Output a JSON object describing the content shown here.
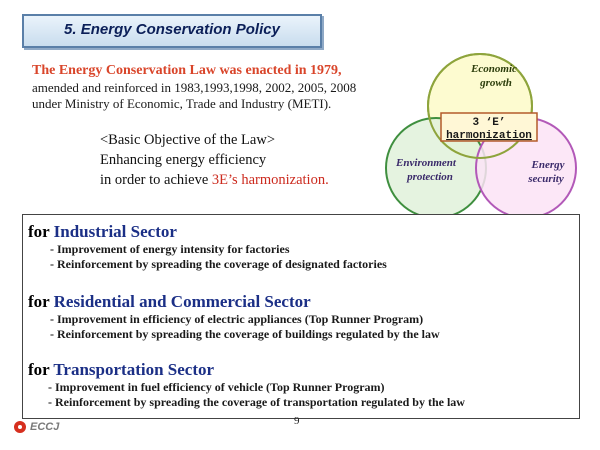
{
  "title": "5.  Energy Conservation Policy",
  "intro": {
    "line1": "The Energy Conservation Law was enacted in 1979,",
    "line2": "amended and reinforced in 1983,1993,1998, 2002, 2005, 2008",
    "line3": "under Ministry of Economic, Trade and Industry (METI)."
  },
  "objective": {
    "heading": "<Basic Objective of the Law>",
    "line1": "Enhancing energy efficiency",
    "line2_prefix": "in order to achieve ",
    "line2_highlight": "3E’s harmonization."
  },
  "venn": {
    "economic_line1": "Economic",
    "economic_line2": "growth",
    "environment_line1": "Environment",
    "environment_line2": "protection",
    "energy_line1": "Energy",
    "energy_line2": "security",
    "center_line1": "3 ‘E’",
    "center_line2": "harmonization",
    "colors": {
      "economic": "#fdfbd0",
      "environment": "#e1f1da",
      "energy": "#fbe3f6"
    }
  },
  "sectors": [
    {
      "for": "for",
      "name": "Industrial Sector",
      "items": [
        "- Improvement of energy intensity for factories",
        "- Reinforcement by spreading the coverage of designated factories"
      ]
    },
    {
      "for": "for",
      "name": "Residential and Commercial Sector",
      "items": [
        "- Improvement in efficiency of electric appliances (Top Runner Program)",
        "- Reinforcement by spreading the coverage of buildings regulated by the law"
      ]
    },
    {
      "for": "for",
      "name": "Transportation Sector",
      "items": [
        "- Improvement in fuel efficiency of vehicle (Top Runner Program)",
        "- Reinforcement by spreading the coverage of transportation regulated by the law"
      ]
    }
  ],
  "page_number": "9",
  "footer_logo": "ECCJ"
}
